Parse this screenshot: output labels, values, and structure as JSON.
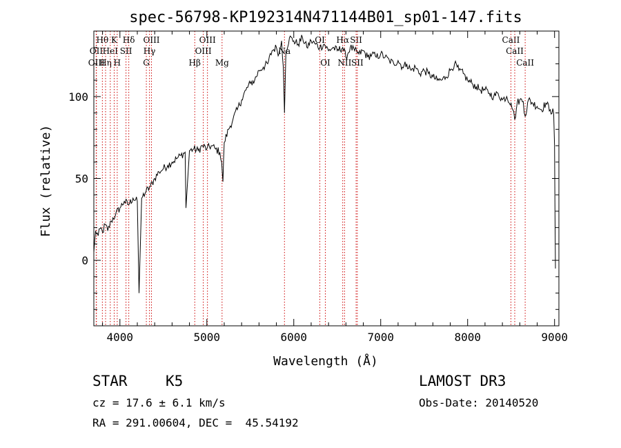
{
  "chart_data": {
    "type": "line",
    "title": "spec-56798-KP192314N471144B01_sp01-147.fits",
    "xlabel": "Wavelength (Å)",
    "ylabel": "Flux (relative)",
    "xlim": [
      3700,
      9050
    ],
    "ylim": [
      -40,
      140
    ],
    "xticks": [
      4000,
      5000,
      6000,
      7000,
      8000,
      9000
    ],
    "yticks": [
      0,
      50,
      100
    ],
    "grid": false,
    "series": [
      {
        "name": "flux",
        "color": "#000000",
        "x": [
          3700,
          3720,
          3750,
          3780,
          3800,
          3830,
          3860,
          3900,
          3950,
          4000,
          4050,
          4100,
          4150,
          4200,
          4220,
          4250,
          4300,
          4350,
          4400,
          4450,
          4500,
          4550,
          4600,
          4650,
          4700,
          4750,
          4760,
          4800,
          4850,
          4900,
          4950,
          5000,
          5050,
          5100,
          5150,
          5170,
          5185,
          5200,
          5250,
          5300,
          5350,
          5400,
          5450,
          5500,
          5550,
          5600,
          5650,
          5700,
          5750,
          5800,
          5830,
          5860,
          5880,
          5893,
          5910,
          5950,
          6000,
          6050,
          6100,
          6150,
          6200,
          6250,
          6300,
          6350,
          6400,
          6450,
          6500,
          6563,
          6600,
          6650,
          6700,
          6750,
          6800,
          6850,
          6900,
          6950,
          7000,
          7050,
          7100,
          7150,
          7200,
          7250,
          7300,
          7350,
          7400,
          7450,
          7500,
          7550,
          7600,
          7650,
          7700,
          7750,
          7800,
          7850,
          7900,
          7950,
          8000,
          8050,
          8100,
          8150,
          8200,
          8250,
          8300,
          8350,
          8400,
          8450,
          8500,
          8520,
          8542,
          8570,
          8600,
          8640,
          8662,
          8700,
          8750,
          8800,
          8850,
          8900,
          8950,
          8990,
          9000,
          9005,
          9010
        ],
        "values": [
          5,
          18,
          15,
          20,
          17,
          22,
          18,
          24,
          28,
          32,
          36,
          34,
          38,
          36,
          -20,
          38,
          42,
          45,
          50,
          54,
          56,
          58,
          60,
          62,
          64,
          66,
          32,
          67,
          68,
          67,
          70,
          68,
          70,
          68,
          66,
          60,
          48,
          72,
          80,
          86,
          92,
          98,
          104,
          108,
          110,
          116,
          118,
          120,
          128,
          130,
          126,
          134,
          118,
          90,
          128,
          136,
          134,
          132,
          136,
          130,
          134,
          132,
          130,
          132,
          128,
          130,
          128,
          130,
          124,
          130,
          128,
          126,
          128,
          124,
          126,
          124,
          126,
          124,
          122,
          120,
          122,
          118,
          120,
          116,
          118,
          114,
          116,
          114,
          112,
          110,
          110,
          112,
          116,
          120,
          116,
          114,
          110,
          108,
          106,
          104,
          104,
          102,
          100,
          102,
          98,
          100,
          96,
          92,
          86,
          96,
          98,
          97,
          88,
          98,
          96,
          94,
          92,
          96,
          92,
          90,
          70,
          30,
          -5
        ]
      }
    ],
    "line_markers": [
      {
        "label": "Hθ",
        "wavelength": 3798,
        "row": 1
      },
      {
        "label": "OII",
        "wavelength": 3727,
        "row": 2
      },
      {
        "label": "OIII",
        "wavelength": 3730,
        "row": 3
      },
      {
        "label": "Hη",
        "wavelength": 3835,
        "row": 3
      },
      {
        "label": "HeI",
        "wavelength": 3889,
        "row": 2
      },
      {
        "label": "K",
        "wavelength": 3934,
        "row": 1
      },
      {
        "label": "SII",
        "wavelength": 4070,
        "row": 2
      },
      {
        "label": "H",
        "wavelength": 3969,
        "row": 3
      },
      {
        "label": "Hδ",
        "wavelength": 4102,
        "row": 1
      },
      {
        "label": "OIII",
        "wavelength": 4363,
        "row": 1
      },
      {
        "label": "Hγ",
        "wavelength": 4340,
        "row": 2
      },
      {
        "label": "G",
        "wavelength": 4304,
        "row": 3
      },
      {
        "label": "Hβ",
        "wavelength": 4861,
        "row": 3
      },
      {
        "label": "OIII",
        "wavelength": 5007,
        "row": 1
      },
      {
        "label": "OIII",
        "wavelength": 4959,
        "row": 2
      },
      {
        "label": "Mg",
        "wavelength": 5175,
        "row": 3
      },
      {
        "label": "Na",
        "wavelength": 5893,
        "row": 2
      },
      {
        "label": "OI",
        "wavelength": 6300,
        "row": 1
      },
      {
        "label": "OI",
        "wavelength": 6363,
        "row": 3
      },
      {
        "label": "Hα",
        "wavelength": 6563,
        "row": 1
      },
      {
        "label": "NII",
        "wavelength": 6584,
        "row": 3
      },
      {
        "label": "SII",
        "wavelength": 6717,
        "row": 1
      },
      {
        "label": "SII",
        "wavelength": 6731,
        "row": 3
      },
      {
        "label": "CaII",
        "wavelength": 8498,
        "row": 1
      },
      {
        "label": "CaII",
        "wavelength": 8542,
        "row": 2
      },
      {
        "label": "CaII",
        "wavelength": 8662,
        "row": 3
      }
    ],
    "marker_color": "#cc0000"
  },
  "info": {
    "object_class": "STAR",
    "subclass": "K5",
    "survey": "LAMOST DR3",
    "cz_text": "cz = 17.6 ± 6.1 km/s",
    "obs_date_text": "Obs-Date: 20140520",
    "coords_text": "RA = 291.00604, DEC =  45.54192"
  }
}
